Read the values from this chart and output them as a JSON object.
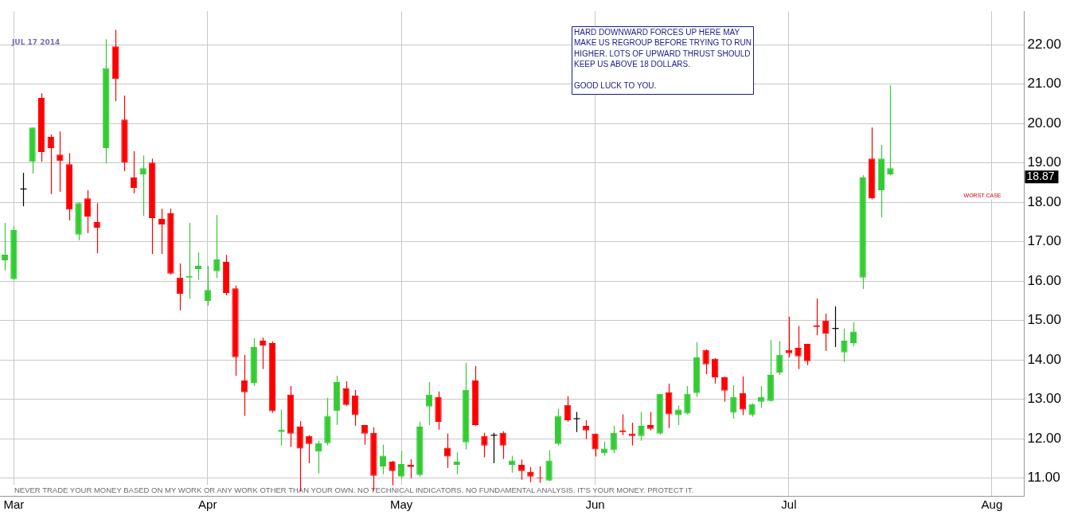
{
  "chart_data": {
    "type": "candlestick",
    "categories": [
      null,
      "Mar",
      null,
      null,
      null,
      null,
      null,
      null,
      null,
      null,
      null,
      null,
      null,
      null,
      null,
      null,
      null,
      null,
      null,
      null,
      null,
      null,
      "Apr",
      null,
      null,
      null,
      null,
      null,
      null,
      null,
      null,
      null,
      null,
      null,
      null,
      null,
      null,
      null,
      null,
      null,
      null,
      null,
      null,
      "May",
      null,
      null,
      null,
      null,
      null,
      null,
      null,
      null,
      null,
      null,
      null,
      null,
      null,
      null,
      null,
      null,
      null,
      null,
      null,
      null,
      "Jun",
      null,
      null,
      null,
      null,
      null,
      null,
      null,
      null,
      null,
      null,
      null,
      null,
      null,
      null,
      null,
      null,
      null,
      null,
      null,
      null,
      "Jul",
      null,
      null,
      null,
      null,
      null,
      null,
      null,
      null,
      null,
      null,
      null,
      null,
      null,
      null,
      null,
      null,
      null,
      null,
      null,
      null,
      null,
      "Aug",
      null,
      null,
      null
    ],
    "ohlc": [
      [
        16.53,
        17.48,
        16.27,
        16.67
      ],
      [
        16.05,
        17.4,
        16.03,
        17.3
      ],
      [
        18.34,
        18.75,
        17.9,
        18.34
      ],
      [
        19.03,
        19.9,
        18.73,
        19.9
      ],
      [
        20.65,
        20.77,
        19.03,
        19.28
      ],
      [
        19.66,
        19.72,
        18.21,
        19.38
      ],
      [
        19.21,
        19.8,
        18.27,
        19.05
      ],
      [
        18.97,
        19.25,
        17.54,
        17.82
      ],
      [
        17.18,
        18.0,
        17.04,
        17.98
      ],
      [
        18.1,
        18.31,
        17.22,
        17.64
      ],
      [
        17.5,
        17.98,
        16.71,
        17.36
      ],
      [
        19.38,
        22.14,
        18.99,
        21.41
      ],
      [
        21.96,
        22.38,
        20.57,
        21.13
      ],
      [
        20.1,
        20.71,
        18.79,
        19.01
      ],
      [
        18.63,
        19.3,
        18.23,
        18.37
      ],
      [
        18.71,
        19.19,
        17.66,
        18.87
      ],
      [
        19.01,
        19.11,
        16.69,
        17.6
      ],
      [
        17.58,
        17.84,
        16.69,
        17.44
      ],
      [
        17.72,
        17.84,
        16.17,
        16.19
      ],
      [
        16.09,
        16.45,
        15.26,
        15.68
      ],
      [
        16.09,
        17.48,
        15.56,
        16.13
      ],
      [
        16.31,
        16.73,
        16.03,
        16.39
      ],
      [
        15.5,
        16.39,
        15.38,
        15.78
      ],
      [
        16.25,
        17.68,
        16.08,
        16.55
      ],
      [
        16.49,
        16.67,
        15.64,
        15.7
      ],
      [
        15.82,
        15.89,
        13.6,
        14.07
      ],
      [
        13.48,
        14.13,
        12.58,
        13.18
      ],
      [
        13.42,
        14.55,
        13.34,
        14.33
      ],
      [
        14.49,
        14.57,
        13.77,
        14.37
      ],
      [
        14.43,
        14.47,
        12.66,
        12.7
      ],
      [
        12.17,
        12.74,
        11.83,
        12.23
      ],
      [
        13.12,
        13.34,
        11.79,
        12.13
      ],
      [
        12.31,
        12.45,
        10.66,
        11.75
      ],
      [
        12.07,
        12.09,
        11.38,
        11.87
      ],
      [
        11.67,
        11.95,
        11.12,
        11.89
      ],
      [
        11.89,
        13.04,
        11.83,
        12.58
      ],
      [
        12.7,
        13.6,
        12.35,
        13.44
      ],
      [
        13.28,
        13.46,
        12.84,
        12.86
      ],
      [
        13.1,
        13.24,
        12.33,
        12.6
      ],
      [
        12.35,
        12.35,
        11.85,
        12.13
      ],
      [
        12.15,
        12.29,
        10.68,
        11.06
      ],
      [
        11.3,
        11.85,
        11.1,
        11.57
      ],
      [
        11.42,
        11.44,
        10.82,
        11.18
      ],
      [
        11.04,
        11.69,
        10.98,
        11.36
      ],
      [
        11.34,
        11.48,
        11.0,
        11.28
      ],
      [
        11.08,
        12.43,
        11.04,
        12.31
      ],
      [
        12.82,
        13.44,
        12.35,
        13.12
      ],
      [
        13.06,
        13.2,
        12.23,
        12.43
      ],
      [
        11.77,
        12.13,
        11.26,
        11.55
      ],
      [
        11.34,
        11.65,
        11.1,
        11.42
      ],
      [
        11.91,
        13.93,
        11.73,
        13.24
      ],
      [
        13.48,
        13.85,
        12.33,
        12.35
      ],
      [
        12.07,
        12.15,
        11.53,
        11.83
      ],
      [
        12.09,
        12.15,
        11.38,
        12.09
      ],
      [
        12.15,
        12.19,
        11.49,
        11.83
      ],
      [
        11.34,
        11.57,
        11.14,
        11.45
      ],
      [
        11.34,
        11.47,
        10.96,
        11.18
      ],
      [
        11.16,
        11.28,
        10.9,
        11.04
      ],
      [
        11.02,
        11.3,
        10.88,
        11.0
      ],
      [
        10.94,
        11.71,
        10.92,
        11.45
      ],
      [
        11.87,
        12.76,
        11.83,
        12.58
      ],
      [
        12.86,
        13.08,
        12.43,
        12.47
      ],
      [
        12.51,
        12.68,
        12.17,
        12.51
      ],
      [
        12.33,
        12.47,
        11.99,
        12.21
      ],
      [
        12.13,
        12.13,
        11.55,
        11.73
      ],
      [
        11.63,
        11.93,
        11.57,
        11.75
      ],
      [
        11.71,
        12.33,
        11.63,
        12.15
      ],
      [
        12.21,
        12.62,
        12.09,
        12.17
      ],
      [
        12.13,
        12.41,
        11.83,
        12.07
      ],
      [
        12.07,
        12.68,
        11.95,
        12.33
      ],
      [
        12.35,
        12.68,
        12.21,
        12.25
      ],
      [
        12.13,
        13.14,
        12.11,
        13.14
      ],
      [
        13.18,
        13.4,
        12.27,
        12.62
      ],
      [
        12.6,
        12.84,
        12.35,
        12.74
      ],
      [
        12.64,
        13.34,
        12.62,
        13.14
      ],
      [
        13.16,
        14.45,
        13.06,
        14.07
      ],
      [
        14.25,
        14.27,
        13.64,
        13.89
      ],
      [
        14.03,
        14.05,
        13.4,
        13.56
      ],
      [
        13.56,
        13.58,
        12.94,
        13.22
      ],
      [
        12.66,
        13.36,
        12.51,
        13.06
      ],
      [
        13.16,
        13.58,
        12.6,
        12.74
      ],
      [
        12.6,
        12.9,
        12.56,
        12.88
      ],
      [
        12.94,
        13.34,
        12.78,
        13.06
      ],
      [
        12.96,
        14.51,
        12.94,
        13.62
      ],
      [
        13.68,
        14.47,
        13.62,
        14.13
      ],
      [
        14.25,
        15.1,
        14.07,
        14.17
      ],
      [
        14.31,
        14.86,
        13.77,
        14.09
      ],
      [
        14.41,
        14.41,
        13.87,
        13.97
      ],
      [
        14.88,
        15.56,
        14.63,
        14.84
      ],
      [
        15.0,
        15.18,
        14.23,
        14.67
      ],
      [
        14.8,
        15.36,
        14.33,
        14.8
      ],
      [
        14.19,
        14.8,
        13.95,
        14.49
      ],
      [
        14.43,
        14.96,
        14.35,
        14.72
      ],
      [
        16.09,
        18.69,
        15.8,
        18.63
      ],
      [
        19.11,
        19.9,
        18.08,
        18.1
      ],
      [
        18.31,
        19.46,
        17.62,
        19.11
      ],
      [
        18.71,
        20.97,
        18.69,
        18.87
      ],
      null,
      null,
      null,
      null,
      null,
      null,
      null,
      null,
      null,
      null,
      null,
      null,
      null,
      null
    ],
    "colors": [
      "#33cc33",
      "#33cc33",
      "#000000",
      "#33cc33",
      "#ff0000",
      "#ff0000",
      "#ff0000",
      "#ff0000",
      "#33cc33",
      "#ff0000",
      "#ff0000",
      "#33cc33",
      "#ff0000",
      "#ff0000",
      "#ff0000",
      "#33cc33",
      "#ff0000",
      "#ff0000",
      "#ff0000",
      "#ff0000",
      "#33cc33",
      "#33cc33",
      "#33cc33",
      "#33cc33",
      "#ff0000",
      "#ff0000",
      "#ff0000",
      "#33cc33",
      "#ff0000",
      "#ff0000",
      "#33cc33",
      "#ff0000",
      "#ff0000",
      "#ff0000",
      "#33cc33",
      "#33cc33",
      "#33cc33",
      "#ff0000",
      "#ff0000",
      "#ff0000",
      "#ff0000",
      "#33cc33",
      "#ff0000",
      "#33cc33",
      "#ff0000",
      "#33cc33",
      "#33cc33",
      "#ff0000",
      "#ff0000",
      "#33cc33",
      "#33cc33",
      "#ff0000",
      "#ff0000",
      "#000000",
      "#ff0000",
      "#33cc33",
      "#ff0000",
      "#ff0000",
      "#ff0000",
      "#33cc33",
      "#33cc33",
      "#ff0000",
      "#000000",
      "#ff0000",
      "#ff0000",
      "#33cc33",
      "#33cc33",
      "#ff0000",
      "#ff0000",
      "#33cc33",
      "#ff0000",
      "#33cc33",
      "#ff0000",
      "#33cc33",
      "#33cc33",
      "#33cc33",
      "#ff0000",
      "#ff0000",
      "#ff0000",
      "#33cc33",
      "#ff0000",
      "#33cc33",
      "#33cc33",
      "#33cc33",
      "#33cc33",
      "#ff0000",
      "#ff0000",
      "#ff0000",
      "#ff0000",
      "#ff0000",
      "#000000",
      "#33cc33",
      "#33cc33",
      "#33cc33",
      "#ff0000",
      "#33cc33",
      "#33cc33",
      null,
      null,
      null,
      null,
      null,
      null,
      null,
      null,
      null,
      null,
      null,
      null,
      null,
      null
    ],
    "ylim": [
      10.55,
      22.85
    ],
    "yticks": [
      {
        "value": 11,
        "label": "11.00"
      },
      {
        "value": 12,
        "label": "12.00"
      },
      {
        "value": 13,
        "label": "13.00"
      },
      {
        "value": 14,
        "label": "14.00"
      },
      {
        "value": 15,
        "label": "15.00"
      },
      {
        "value": 16,
        "label": "16.00"
      },
      {
        "value": 17,
        "label": "17.00"
      },
      {
        "value": 18,
        "label": "18.00"
      },
      {
        "value": 19,
        "label": "19.00"
      },
      {
        "value": 20,
        "label": "20.00"
      },
      {
        "value": 21,
        "label": "21.00"
      },
      {
        "value": 22,
        "label": "22.00"
      }
    ],
    "grid": true,
    "annotations": [
      "HARD DOWNWARD FORCES UP HERE MAY\nMAKE US REGROUP BEFORE TRYING TO RUN\nHIGHER. LOTS OF UPWARD THRUST SHOULD\nKEEP US ABOVE 18 DOLLARS.\n\nGOOD LUCK TO YOU.",
      "WORST CASE",
      "JUL 17 2014",
      "NEVER TRADE YOUR MONEY BASED ON MY WORK OR ANY WORK OTHER THAN YOUR OWN. NO TECHNICAL INDICATORS. NO FUNDAMENTAL ANALYSIS. IT'S YOUR MONEY. PROTECT IT.",
      "18.87"
    ]
  }
}
